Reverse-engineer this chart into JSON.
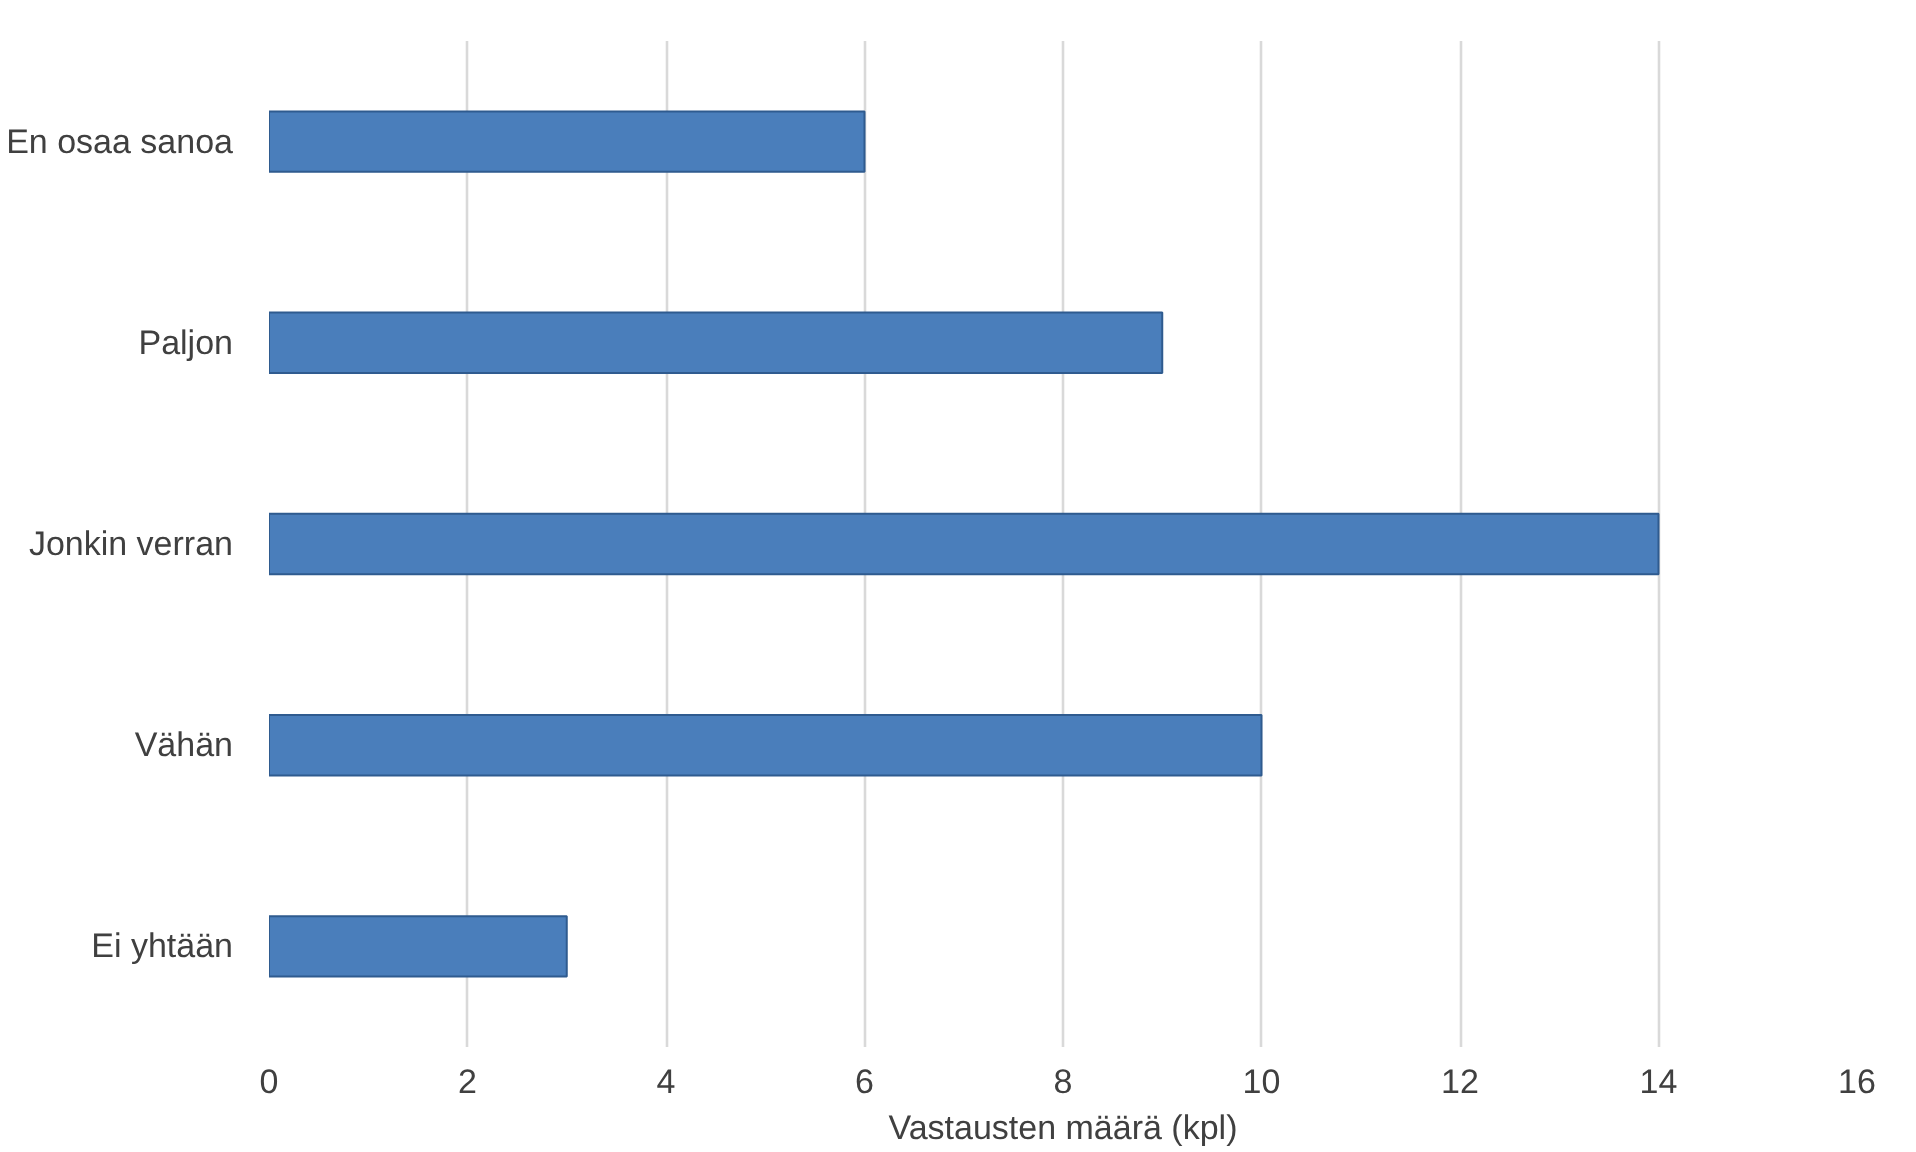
{
  "chart_data": {
    "type": "bar",
    "orientation": "horizontal",
    "categories": [
      "En osaa sanoa",
      "Paljon",
      "Jonkin verran",
      "Vähän",
      "Ei yhtään"
    ],
    "values": [
      6,
      9,
      14,
      10,
      3
    ],
    "color": "#4a7ebb",
    "xlabel": "Vastausten määrä (kpl)",
    "xlim": [
      0,
      16
    ],
    "xticks": [
      0,
      2,
      4,
      6,
      8,
      10,
      12,
      14,
      16
    ],
    "grid": "x"
  }
}
